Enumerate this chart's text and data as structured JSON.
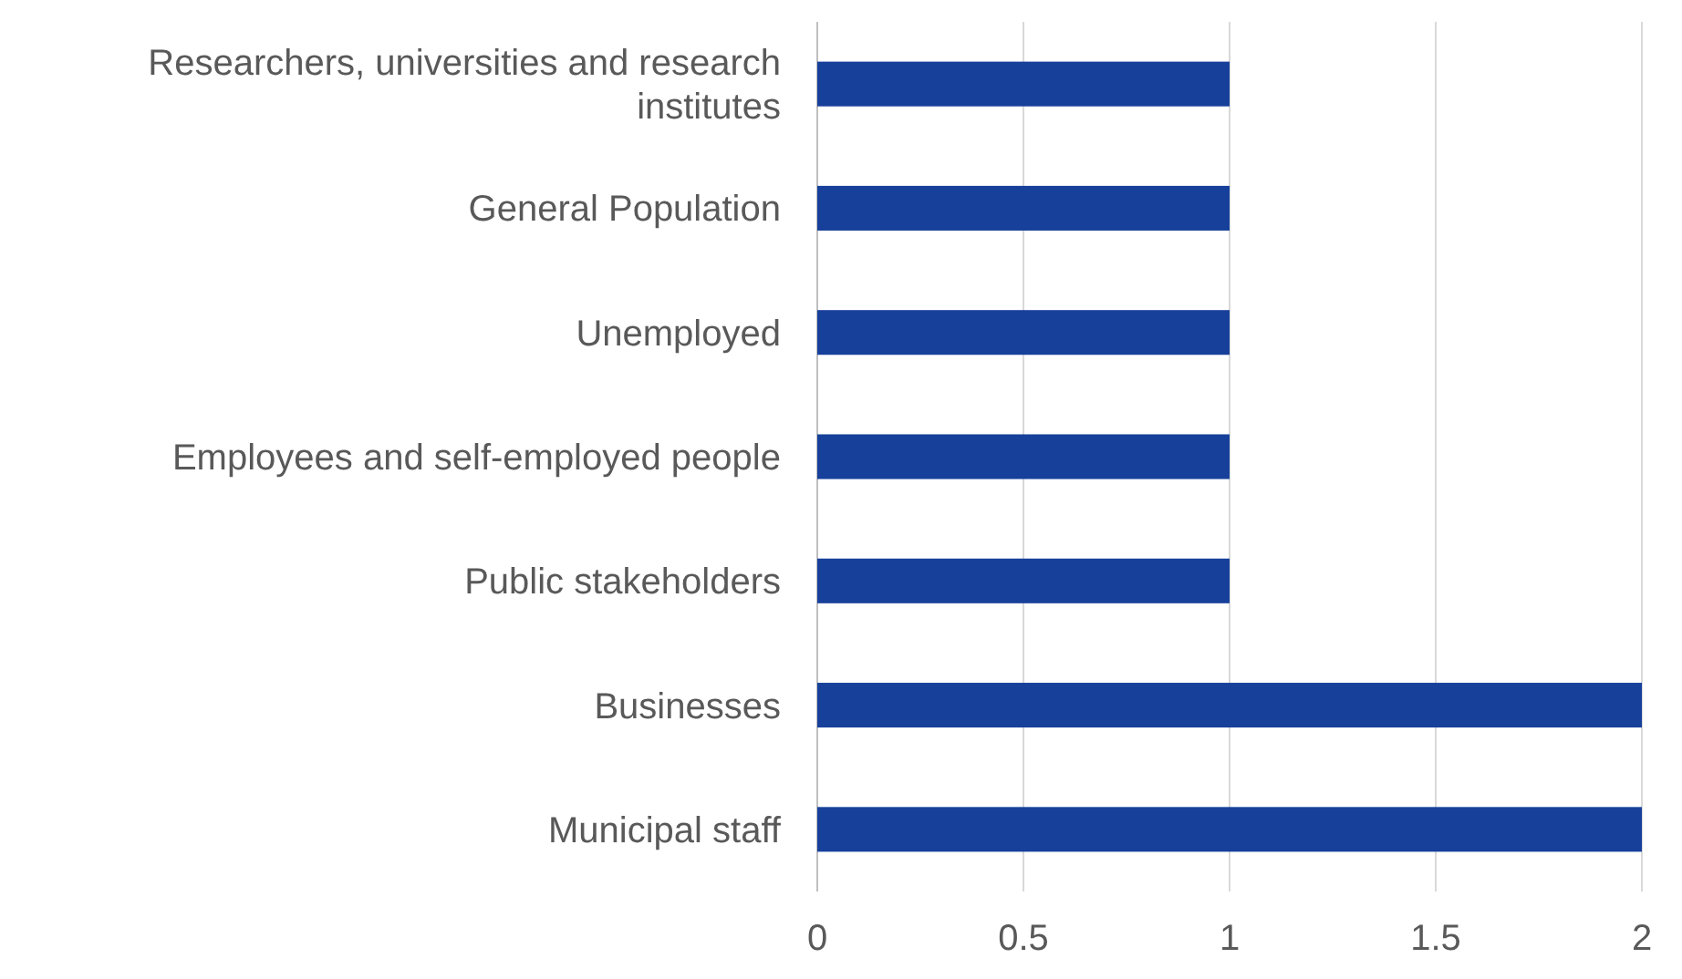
{
  "chart_data": {
    "type": "bar",
    "orientation": "horizontal",
    "categories": [
      "Researchers, universities and research institutes",
      "General Population",
      "Unemployed",
      "Employees and self-employed people",
      "Public stakeholders",
      "Businesses",
      "Municipal staff"
    ],
    "values": [
      1,
      1,
      1,
      1,
      1,
      2,
      2
    ],
    "color": "#17409a",
    "xlim": [
      0,
      2
    ],
    "xticks": [
      0,
      0.5,
      1,
      1.5,
      2
    ],
    "grid": "x"
  }
}
